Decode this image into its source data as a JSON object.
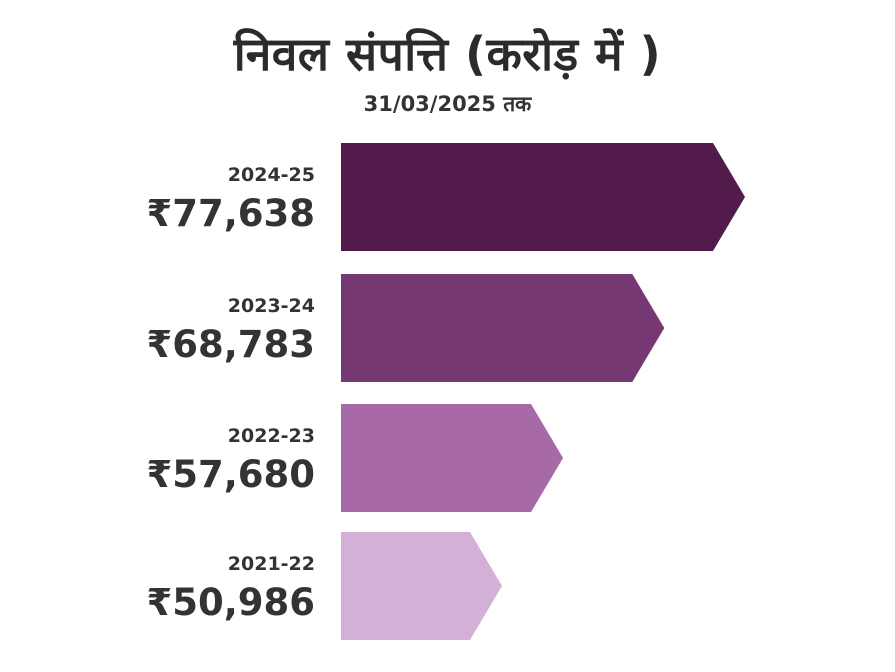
{
  "chart_data": {
    "type": "bar",
    "orientation": "horizontal",
    "title": "निवल संपत्ति (करोड़ में )",
    "subtitle": "31/03/2025 तक",
    "currency_symbol": "₹",
    "categories": [
      "2024-25",
      "2023-24",
      "2022-23",
      "2021-22"
    ],
    "values": [
      77638,
      68783,
      57680,
      50986
    ],
    "value_labels": [
      "₹77,638",
      "₹68,783",
      "₹57,680",
      "₹50,986"
    ],
    "colors": [
      "#521b4c",
      "#763873",
      "#a76aa6",
      "#d3b1d6"
    ]
  }
}
